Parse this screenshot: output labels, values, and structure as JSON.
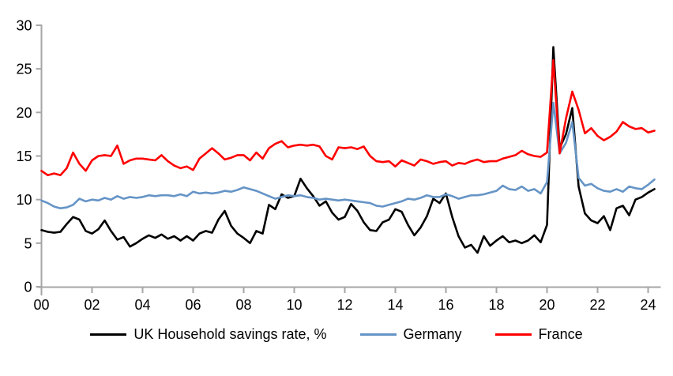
{
  "chart_data": {
    "type": "line",
    "title": "",
    "xlabel": "",
    "ylabel": "",
    "ylim": [
      0,
      30
    ],
    "y_ticks": [
      0,
      5,
      10,
      15,
      20,
      25,
      30
    ],
    "x_tick_labels": [
      "00",
      "02",
      "04",
      "06",
      "08",
      "10",
      "12",
      "14",
      "16",
      "18",
      "20",
      "22",
      "24"
    ],
    "x_start_year": 2000,
    "points_per_year": 4,
    "grid": false,
    "legend_position": "bottom",
    "axis_color": "#a6a6a6",
    "tick_label_color": "#000000",
    "series": [
      {
        "name": "UK Household savings rate, %",
        "color": "#000000",
        "values": [
          6.5,
          6.3,
          6.2,
          6.3,
          7.2,
          8.0,
          7.7,
          6.4,
          6.1,
          6.6,
          7.6,
          6.4,
          5.4,
          5.7,
          4.6,
          5.0,
          5.5,
          5.9,
          5.6,
          6.0,
          5.5,
          5.8,
          5.3,
          5.8,
          5.3,
          6.1,
          6.4,
          6.2,
          7.7,
          8.7,
          7.0,
          6.1,
          5.6,
          5.0,
          6.4,
          6.1,
          9.4,
          8.9,
          10.6,
          10.2,
          10.4,
          12.4,
          11.3,
          10.4,
          9.3,
          9.8,
          8.5,
          7.7,
          8.0,
          9.5,
          8.7,
          7.4,
          6.5,
          6.4,
          7.4,
          7.7,
          8.9,
          8.6,
          7.1,
          5.9,
          6.8,
          8.1,
          10.1,
          9.6,
          10.7,
          8.0,
          5.8,
          4.5,
          4.8,
          3.9,
          5.8,
          4.7,
          5.3,
          5.8,
          5.1,
          5.3,
          5.0,
          5.3,
          5.9,
          5.1,
          7.1,
          27.5,
          15.9,
          17.5,
          20.5,
          11.5,
          8.4,
          7.6,
          7.3,
          8.1,
          6.5,
          9.0,
          9.3,
          8.2,
          10.0,
          10.3,
          10.8,
          11.2
        ]
      },
      {
        "name": "Germany",
        "color": "#6594c6",
        "values": [
          9.9,
          9.6,
          9.2,
          9.0,
          9.1,
          9.4,
          10.1,
          9.8,
          10.0,
          9.9,
          10.2,
          10.0,
          10.4,
          10.1,
          10.3,
          10.2,
          10.3,
          10.5,
          10.4,
          10.5,
          10.5,
          10.4,
          10.6,
          10.4,
          10.9,
          10.7,
          10.8,
          10.7,
          10.8,
          11.0,
          10.9,
          11.1,
          11.4,
          11.2,
          11.0,
          10.7,
          10.4,
          10.1,
          10.3,
          10.5,
          10.4,
          10.5,
          10.3,
          10.2,
          10.0,
          10.1,
          10.0,
          9.9,
          10.0,
          9.9,
          9.8,
          9.7,
          9.6,
          9.3,
          9.2,
          9.4,
          9.6,
          9.8,
          10.1,
          10.0,
          10.2,
          10.5,
          10.3,
          10.3,
          10.6,
          10.4,
          10.1,
          10.3,
          10.5,
          10.5,
          10.6,
          10.8,
          11.0,
          11.6,
          11.2,
          11.1,
          11.5,
          11.0,
          11.2,
          10.7,
          12.0,
          21.1,
          15.3,
          16.5,
          18.9,
          12.5,
          11.6,
          11.8,
          11.3,
          11.0,
          10.9,
          11.2,
          10.9,
          11.5,
          11.3,
          11.2,
          11.7,
          12.3
        ]
      },
      {
        "name": "France",
        "color": "#ff0000",
        "values": [
          13.3,
          12.8,
          13.0,
          12.8,
          13.6,
          15.4,
          14.1,
          13.3,
          14.5,
          15.0,
          15.1,
          15.0,
          16.2,
          14.1,
          14.5,
          14.7,
          14.7,
          14.6,
          14.5,
          15.1,
          14.4,
          13.9,
          13.6,
          13.8,
          13.4,
          14.7,
          15.3,
          15.9,
          15.3,
          14.6,
          14.8,
          15.1,
          15.1,
          14.5,
          15.4,
          14.7,
          15.9,
          16.4,
          16.7,
          16.0,
          16.2,
          16.3,
          16.2,
          16.3,
          16.1,
          15.0,
          14.6,
          16.0,
          15.9,
          16.0,
          15.8,
          16.1,
          15.0,
          14.4,
          14.3,
          14.4,
          13.8,
          14.5,
          14.2,
          13.9,
          14.6,
          14.4,
          14.1,
          14.3,
          14.4,
          13.9,
          14.2,
          14.1,
          14.4,
          14.6,
          14.3,
          14.4,
          14.4,
          14.7,
          14.9,
          15.1,
          15.6,
          15.2,
          15.0,
          14.9,
          15.4,
          26.0,
          15.3,
          19.3,
          22.4,
          20.3,
          17.6,
          18.2,
          17.3,
          16.8,
          17.2,
          17.8,
          18.9,
          18.4,
          18.1,
          18.2,
          17.7,
          17.9
        ]
      }
    ]
  }
}
